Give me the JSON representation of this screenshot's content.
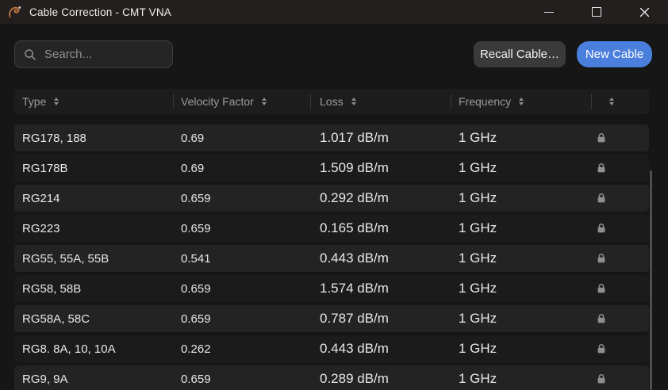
{
  "window": {
    "title": "Cable Correction - CMT VNA"
  },
  "toolbar": {
    "search_placeholder": "Search...",
    "recall_button": "Recall Cable…",
    "new_button": "New Cable"
  },
  "icons": {
    "app_logo": "gecko-logo",
    "search": "magnifier",
    "row_lock": "padlock-locked",
    "header_sort": "sort-arrows"
  },
  "colors": {
    "accent_blue": "#4a7fdd",
    "logo_copper": "#c07a42",
    "row_odd": "#242323",
    "row_even": "#1c1b1b",
    "titlebar": "#221f1e"
  },
  "table": {
    "columns": [
      {
        "label": "Type"
      },
      {
        "label": "Velocity Factor"
      },
      {
        "label": "Loss"
      },
      {
        "label": "Frequency"
      },
      {
        "label": ""
      }
    ],
    "rows": [
      {
        "type": "RG178, 188",
        "velocity_factor": "0.69",
        "loss": "1.017 dB/m",
        "frequency": "1 GHz",
        "locked": true
      },
      {
        "type": "RG178B",
        "velocity_factor": "0.69",
        "loss": "1.509 dB/m",
        "frequency": "1 GHz",
        "locked": true
      },
      {
        "type": "RG214",
        "velocity_factor": "0.659",
        "loss": "0.292 dB/m",
        "frequency": "1 GHz",
        "locked": true
      },
      {
        "type": "RG223",
        "velocity_factor": "0.659",
        "loss": "0.165 dB/m",
        "frequency": "1 GHz",
        "locked": true
      },
      {
        "type": "RG55, 55A, 55B",
        "velocity_factor": "0.541",
        "loss": "0.443 dB/m",
        "frequency": "1 GHz",
        "locked": true
      },
      {
        "type": "RG58, 58B",
        "velocity_factor": "0.659",
        "loss": "1.574 dB/m",
        "frequency": "1 GHz",
        "locked": true
      },
      {
        "type": "RG58A, 58C",
        "velocity_factor": "0.659",
        "loss": "0.787 dB/m",
        "frequency": "1 GHz",
        "locked": true
      },
      {
        "type": "RG8. 8A, 10, 10A",
        "velocity_factor": "0.262",
        "loss": "0.443 dB/m",
        "frequency": "1 GHz",
        "locked": true
      },
      {
        "type": "RG9, 9A",
        "velocity_factor": "0.659",
        "loss": "0.289 dB/m",
        "frequency": "1 GHz",
        "locked": true
      }
    ]
  }
}
